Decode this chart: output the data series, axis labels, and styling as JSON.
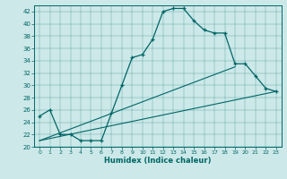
{
  "xlabel": "Humidex (Indice chaleur)",
  "ylabel": "",
  "x_ticks": [
    0,
    1,
    2,
    3,
    4,
    5,
    6,
    7,
    8,
    9,
    10,
    11,
    12,
    13,
    14,
    15,
    16,
    17,
    18,
    19,
    20,
    21,
    22,
    23
  ],
  "ylim": [
    20,
    43
  ],
  "xlim": [
    -0.5,
    23.5
  ],
  "y_ticks": [
    20,
    22,
    24,
    26,
    28,
    30,
    32,
    34,
    36,
    38,
    40,
    42
  ],
  "bg_color": "#cce8e8",
  "line_color": "#006666",
  "main_line": [
    25.0,
    26.0,
    22.0,
    22.0,
    21.0,
    21.0,
    21.0,
    25.5,
    30.0,
    34.5,
    35.0,
    37.5,
    42.0,
    42.5,
    42.5,
    40.5,
    39.0,
    38.5,
    38.5,
    33.5,
    33.5,
    31.5,
    29.5,
    29.0
  ],
  "line2_x": [
    0,
    23
  ],
  "line2_y": [
    21.0,
    29.0
  ],
  "line3_x": [
    0,
    19
  ],
  "line3_y": [
    21.0,
    33.0
  ]
}
